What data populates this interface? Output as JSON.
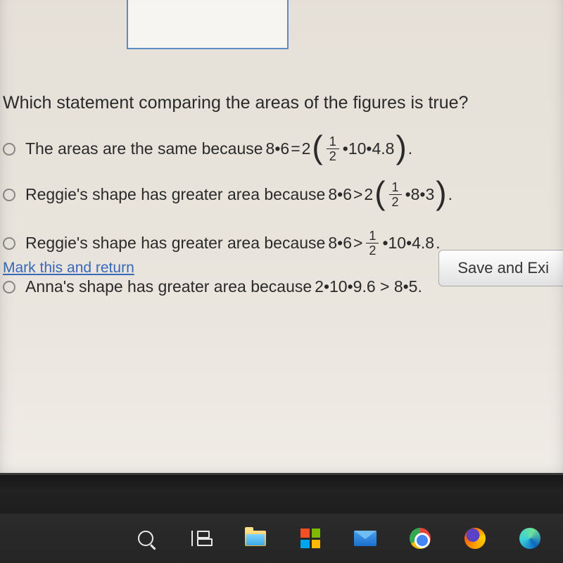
{
  "question": "Which statement comparing the areas of the figures is true?",
  "options": {
    "a": {
      "lead": "The areas are the same because ",
      "lhs": "8•6",
      "op": "=",
      "pre": "2",
      "rhs": "•10•4.8",
      "paren": true
    },
    "b": {
      "lead": "Reggie's shape has greater area because ",
      "lhs": "8•6",
      "op": ">",
      "pre": "2",
      "rhs": "•8•3",
      "paren": true
    },
    "c": {
      "lead": "Reggie's shape has greater area because ",
      "lhs": "8•6",
      "op": ">",
      "pre": "",
      "rhs": "•10•4.8",
      "paren": false,
      "trail": "."
    },
    "d": {
      "lead": "Anna's shape has greater area because ",
      "full": "2•10•9.6 > 8•5."
    }
  },
  "frac": {
    "num": "1",
    "den": "2"
  },
  "footer": {
    "mark": "Mark this and return",
    "save": "Save and Exi"
  }
}
